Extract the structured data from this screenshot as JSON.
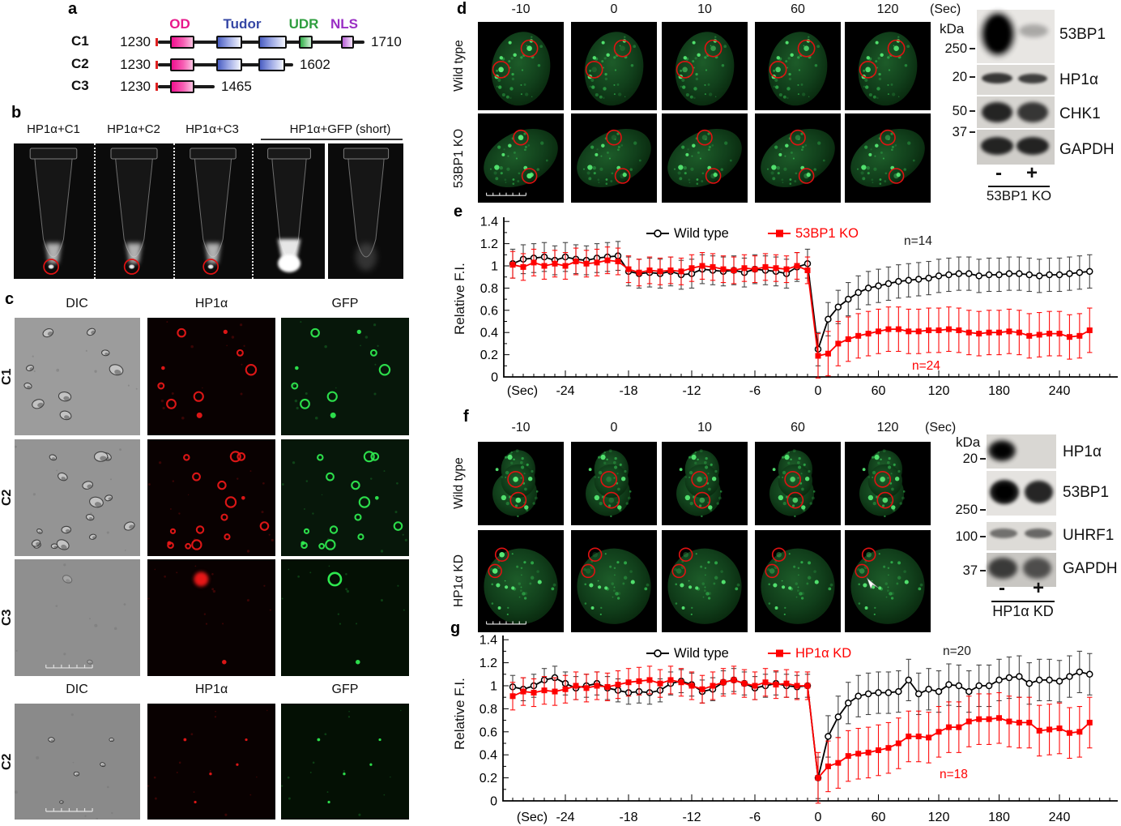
{
  "panels": {
    "a": "a",
    "b": "b",
    "c": "c",
    "d": "d",
    "e": "e",
    "f": "f",
    "g": "g"
  },
  "colors": {
    "od": "#e8198b",
    "tudor": "#3547a5",
    "udr": "#2f9e3f",
    "nls": "#9a2fc4",
    "bleach_circle": "#e01212",
    "frap_red": "#ff0000",
    "fluor_green": "#3bd75c"
  },
  "panel_a": {
    "domain_labels": [
      {
        "text": "OD",
        "color": "#e8198b"
      },
      {
        "text": "Tudor",
        "color": "#3547a5"
      },
      {
        "text": "UDR",
        "color": "#2f9e3f"
      },
      {
        "text": "NLS",
        "color": "#9a2fc4"
      }
    ],
    "constructs": [
      {
        "name": "C1",
        "start": "1230",
        "end": "1710",
        "line_len": 255,
        "domains": [
          {
            "kind": "OD",
            "x": 15,
            "w": 26
          },
          {
            "kind": "Tudor",
            "x": 72,
            "w": 28
          },
          {
            "kind": "Tudor",
            "x": 124,
            "w": 31
          },
          {
            "kind": "UDR",
            "x": 174,
            "w": 13
          },
          {
            "kind": "NLS",
            "x": 226,
            "w": 12
          }
        ]
      },
      {
        "name": "C2",
        "start": "1230",
        "end": "1602",
        "line_len": 167,
        "domains": [
          {
            "kind": "OD",
            "x": 15,
            "w": 26
          },
          {
            "kind": "Tudor",
            "x": 72,
            "w": 28
          },
          {
            "kind": "Tudor",
            "x": 124,
            "w": 29
          }
        ]
      },
      {
        "name": "C3",
        "start": "1230",
        "end": "1465",
        "line_len": 70,
        "domains": [
          {
            "kind": "OD",
            "x": 15,
            "w": 26
          }
        ]
      }
    ]
  },
  "panel_b": {
    "tube_labels": [
      "HP1α+C1",
      "HP1α+C2",
      "HP1α+C3"
    ],
    "gfp_label": "HP1α+GFP",
    "gfp_note": " (short)",
    "tubes": [
      {
        "pellet": "small",
        "circled": true
      },
      {
        "pellet": "small",
        "circled": true
      },
      {
        "pellet": "small",
        "circled": true
      },
      {
        "pellet": "large",
        "circled": false
      },
      {
        "pellet": "faint",
        "circled": false
      }
    ]
  },
  "panel_c": {
    "col_headers": [
      "DIC",
      "HP1α",
      "GFP"
    ],
    "row_labels": [
      "C1",
      "C2",
      "C3"
    ],
    "col_headers2": [
      "DIC",
      "HP1α",
      "GFP"
    ],
    "row_label2": "C2"
  },
  "panel_d": {
    "timepoints": [
      "-10",
      "0",
      "10",
      "60",
      "120"
    ],
    "unit": "(Sec)",
    "rows": [
      "Wild type",
      "53BP1 KO"
    ]
  },
  "wb_d": {
    "kda": "kDa",
    "markers": [
      "250",
      "20",
      "50",
      "37"
    ],
    "rows": [
      {
        "label": "53BP1",
        "lanes": [
          1,
          0.3
        ]
      },
      {
        "label": "HP1α",
        "lanes": [
          0.85,
          0.8
        ]
      },
      {
        "label": "CHK1",
        "lanes": [
          0.95,
          0.85
        ]
      },
      {
        "label": "GAPDH",
        "lanes": [
          0.95,
          0.95
        ]
      }
    ],
    "minus": "-",
    "plus": "+",
    "condition": "53BP1 KO"
  },
  "panel_f": {
    "timepoints": [
      "-10",
      "0",
      "10",
      "60",
      "120"
    ],
    "unit": "(Sec)",
    "rows": [
      "Wild type",
      "HP1α KD"
    ]
  },
  "wb_f": {
    "kda": "kDa",
    "markers": [
      "20",
      "250",
      "100",
      "37"
    ],
    "rows": [
      {
        "label": "HP1α",
        "lanes": [
          0.95,
          0
        ]
      },
      {
        "label": "53BP1",
        "lanes": [
          1,
          0.95
        ]
      },
      {
        "label": "UHRF1",
        "lanes": [
          0.55,
          0.6
        ]
      },
      {
        "label": "GAPDH",
        "lanes": [
          0.8,
          0.7
        ]
      }
    ],
    "minus": "-",
    "plus": "+",
    "condition": "HP1α KD"
  },
  "chart_data": [
    {
      "id": "e",
      "type": "line",
      "title": "",
      "xlabel": "(Sec)",
      "ylabel": "Relative F.I.",
      "ylim": [
        0,
        1.4
      ],
      "yticks": [
        0,
        0.2,
        0.4,
        0.6,
        0.8,
        1,
        1.2,
        1.4
      ],
      "xticks": [
        -24,
        -18,
        -12,
        -6,
        0,
        60,
        120,
        180,
        240
      ],
      "x_pre": {
        "start": -29,
        "step": 1,
        "count": 29
      },
      "x_post": {
        "start": 0,
        "step": 10,
        "count": 28
      },
      "legend": [
        {
          "label": "Wild type",
          "color": "#000000",
          "marker": "circle"
        },
        {
          "label": "53BP1 KO",
          "color": "#ff0000",
          "marker": "square"
        }
      ],
      "annotations": [
        {
          "text": "n=14",
          "color": "#1a1a1a"
        },
        {
          "text": "n=24",
          "color": "#ff0000"
        }
      ],
      "series": [
        {
          "name": "Wild type",
          "color": "#000000",
          "marker": "circle",
          "pre_err": 0.13,
          "post_err": 0.15,
          "pre": [
            1.02,
            1.06,
            1.07,
            1.08,
            1.05,
            1.08,
            1.06,
            1.05,
            1.07,
            1.08,
            1.09,
            0.95,
            0.93,
            0.94,
            0.93,
            0.95,
            0.92,
            0.93,
            0.97,
            0.96,
            0.95,
            0.96,
            0.94,
            0.97,
            0.96,
            0.95,
            0.93,
            0.99,
            1.02
          ],
          "post": [
            0.25,
            0.52,
            0.63,
            0.7,
            0.76,
            0.8,
            0.82,
            0.84,
            0.86,
            0.87,
            0.88,
            0.89,
            0.91,
            0.92,
            0.93,
            0.93,
            0.91,
            0.92,
            0.92,
            0.93,
            0.93,
            0.92,
            0.91,
            0.92,
            0.92,
            0.93,
            0.94,
            0.95
          ]
        },
        {
          "name": "53BP1 KO",
          "color": "#ff0000",
          "marker": "square",
          "pre_err": 0.12,
          "post_err": 0.2,
          "pre": [
            1.01,
            0.99,
            1.03,
            1.0,
            1.02,
            1.0,
            1.04,
            1.02,
            1.03,
            1.05,
            1.04,
            0.97,
            0.94,
            0.96,
            0.95,
            0.96,
            0.95,
            0.98,
            1.0,
            0.99,
            0.97,
            0.96,
            0.98,
            0.97,
            0.99,
            0.98,
            0.97,
            1.0,
            0.96
          ],
          "post": [
            0.19,
            0.21,
            0.3,
            0.34,
            0.37,
            0.39,
            0.41,
            0.43,
            0.43,
            0.41,
            0.41,
            0.42,
            0.42,
            0.43,
            0.42,
            0.4,
            0.39,
            0.4,
            0.4,
            0.41,
            0.4,
            0.37,
            0.38,
            0.39,
            0.39,
            0.36,
            0.37,
            0.42
          ]
        }
      ]
    },
    {
      "id": "g",
      "type": "line",
      "title": "",
      "xlabel": "(Sec)",
      "ylabel": "Relative F.I.",
      "ylim": [
        0,
        1.4
      ],
      "yticks": [
        0,
        0.2,
        0.4,
        0.6,
        0.8,
        1,
        1.2,
        1.4
      ],
      "xticks": [
        -24,
        -18,
        -12,
        -6,
        0,
        60,
        120,
        180,
        240
      ],
      "x_pre": {
        "start": -29,
        "step": 1,
        "count": 29
      },
      "x_post": {
        "start": 0,
        "step": 10,
        "count": 28
      },
      "legend": [
        {
          "label": "Wild type",
          "color": "#000000",
          "marker": "circle"
        },
        {
          "label": "HP1α KD",
          "color": "#ff0000",
          "marker": "square"
        }
      ],
      "annotations": [
        {
          "text": "n=20",
          "color": "#1a1a1a"
        },
        {
          "text": "n=18",
          "color": "#ff0000"
        }
      ],
      "series": [
        {
          "name": "Wild type",
          "color": "#000000",
          "marker": "circle",
          "pre_err": 0.1,
          "post_err": 0.18,
          "pre": [
            0.99,
            0.97,
            1.0,
            1.05,
            1.07,
            1.02,
            0.98,
            1.0,
            1.02,
            0.98,
            0.96,
            0.94,
            0.95,
            0.94,
            0.96,
            1.02,
            1.04,
            1.01,
            0.95,
            0.97,
            1.03,
            1.05,
            1.02,
            0.98,
            1.0,
            1.02,
            1.0,
            0.99,
            1.0
          ],
          "post": [
            0.2,
            0.56,
            0.73,
            0.85,
            0.91,
            0.93,
            0.94,
            0.94,
            0.95,
            1.05,
            0.93,
            0.97,
            0.95,
            1.01,
            1.0,
            0.95,
            1.0,
            1.0,
            1.05,
            1.07,
            1.08,
            1.02,
            1.05,
            1.05,
            1.04,
            1.08,
            1.12,
            1.1
          ]
        },
        {
          "name": "HP1α KD",
          "color": "#ff0000",
          "marker": "square",
          "pre_err": 0.12,
          "post_err": 0.22,
          "pre": [
            0.91,
            0.95,
            0.94,
            0.96,
            0.95,
            0.97,
            1.0,
            0.98,
            1.0,
            0.99,
            1.01,
            1.03,
            1.04,
            1.05,
            1.02,
            1.05,
            1.03,
            1.0,
            0.97,
            1.0,
            1.03,
            1.05,
            1.02,
            1.0,
            1.03,
            1.01,
            1.02,
            1.0,
            1.0
          ],
          "post": [
            0.2,
            0.3,
            0.33,
            0.39,
            0.41,
            0.42,
            0.44,
            0.46,
            0.5,
            0.56,
            0.56,
            0.55,
            0.6,
            0.64,
            0.64,
            0.69,
            0.71,
            0.71,
            0.72,
            0.69,
            0.68,
            0.68,
            0.61,
            0.62,
            0.63,
            0.59,
            0.6,
            0.68
          ]
        }
      ]
    }
  ]
}
